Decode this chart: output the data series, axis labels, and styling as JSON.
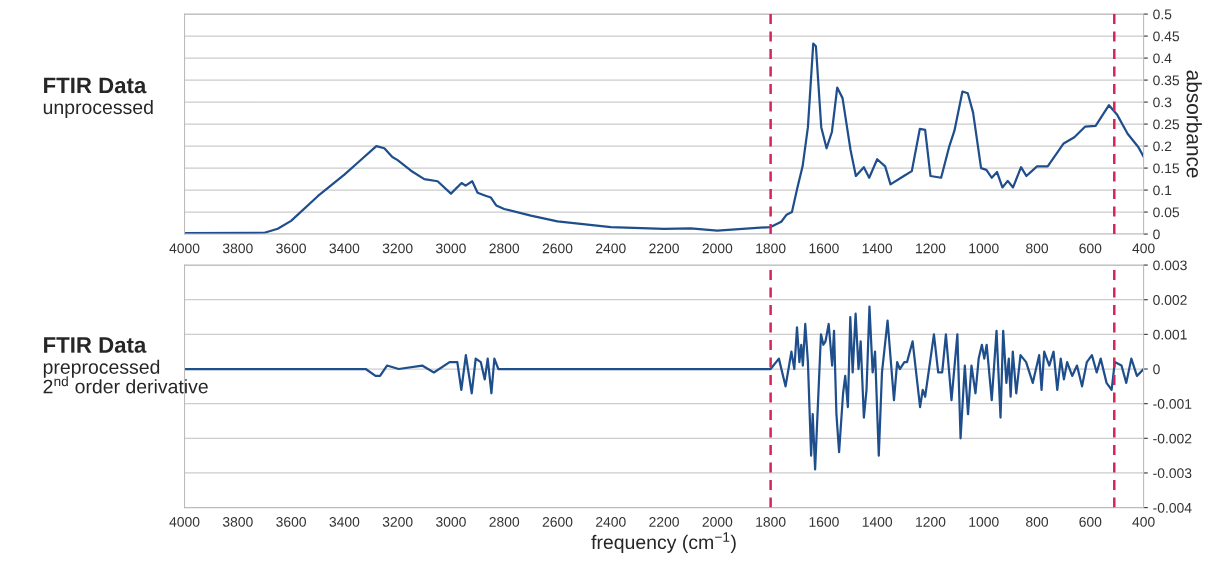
{
  "chart_data": [
    {
      "type": "line",
      "title": "FTIR Data",
      "subtitle": "unprocessed",
      "ylabel": "absorbance",
      "x": [
        4000,
        3700,
        3650,
        3600,
        3500,
        3400,
        3350,
        3280,
        3250,
        3220,
        3200,
        3150,
        3100,
        3050,
        3000,
        2960,
        2945,
        2920,
        2900,
        2870,
        2850,
        2830,
        2800,
        2700,
        2600,
        2400,
        2200,
        2100,
        2000,
        1800,
        1760,
        1740,
        1720,
        1700,
        1680,
        1660,
        1640,
        1630,
        1610,
        1590,
        1570,
        1550,
        1530,
        1500,
        1480,
        1450,
        1430,
        1400,
        1370,
        1350,
        1300,
        1270,
        1240,
        1220,
        1200,
        1160,
        1130,
        1110,
        1080,
        1060,
        1040,
        1010,
        990,
        970,
        950,
        930,
        910,
        890,
        860,
        840,
        800,
        760,
        700,
        660,
        620,
        580,
        530,
        500,
        460,
        420,
        400
      ],
      "series": [
        {
          "color": "#1f4e8c",
          "values": [
            0.002,
            0.003,
            0.012,
            0.03,
            0.086,
            0.135,
            0.162,
            0.2,
            0.195,
            0.175,
            0.168,
            0.144,
            0.125,
            0.12,
            0.092,
            0.116,
            0.11,
            0.12,
            0.094,
            0.087,
            0.083,
            0.065,
            0.057,
            0.042,
            0.029,
            0.016,
            0.012,
            0.013,
            0.008,
            0.016,
            0.028,
            0.044,
            0.05,
            0.104,
            0.154,
            0.243,
            0.433,
            0.427,
            0.243,
            0.195,
            0.232,
            0.333,
            0.309,
            0.191,
            0.132,
            0.152,
            0.128,
            0.17,
            0.154,
            0.113,
            0.132,
            0.143,
            0.239,
            0.237,
            0.132,
            0.128,
            0.198,
            0.235,
            0.324,
            0.32,
            0.276,
            0.15,
            0.146,
            0.128,
            0.141,
            0.106,
            0.121,
            0.106,
            0.152,
            0.132,
            0.154,
            0.154,
            0.206,
            0.22,
            0.244,
            0.246,
            0.293,
            0.272,
            0.228,
            0.198,
            0.176
          ]
        }
      ],
      "xlim": [
        4000,
        400
      ],
      "xticks": [
        4000,
        3800,
        3600,
        3400,
        3200,
        3000,
        2800,
        2600,
        2400,
        2200,
        2000,
        1800,
        1600,
        1400,
        1200,
        1000,
        800,
        600,
        400
      ],
      "ylim": [
        0,
        0.5
      ],
      "yticks": [
        0,
        0.05,
        0.1,
        0.15,
        0.2,
        0.25,
        0.3,
        0.35,
        0.4,
        0.45,
        0.5
      ],
      "grid": "y",
      "line_style": "solid",
      "marker": "none",
      "ref_lines": [
        {
          "axis": "x",
          "value": 1800,
          "color": "#d6245b",
          "line_style": "dashed"
        },
        {
          "axis": "x",
          "value": 510,
          "color": "#d6245b",
          "line_style": "dashed"
        }
      ]
    },
    {
      "type": "line",
      "title": "FTIR Data",
      "subtitle": "preprocessed\n2$^{nd}$ order derivative",
      "xlabel": "frequency (cm$^{−1}$)",
      "x": [
        4000,
        3700,
        3400,
        3320,
        3283,
        3266,
        3240,
        3196,
        3108,
        3064,
        3005,
        2976,
        2961,
        2944,
        2922,
        2907,
        2888,
        2873,
        2862,
        2848,
        2837,
        2822,
        2550,
        1963,
        1800,
        1769,
        1744,
        1722,
        1711,
        1701,
        1692,
        1685,
        1679,
        1670,
        1660,
        1648,
        1642,
        1633,
        1611,
        1602,
        1594,
        1582,
        1569,
        1562,
        1553,
        1543,
        1528,
        1520,
        1510,
        1501,
        1492,
        1481,
        1470,
        1462,
        1450,
        1440,
        1429,
        1417,
        1408,
        1394,
        1382,
        1361,
        1337,
        1325,
        1315,
        1298,
        1288,
        1267,
        1239,
        1229,
        1220,
        1187,
        1171,
        1156,
        1142,
        1121,
        1099,
        1087,
        1071,
        1059,
        1046,
        1031,
        1019,
        1007,
        998,
        989,
        970,
        952,
        937,
        927,
        915,
        906,
        899,
        891,
        878,
        862,
        841,
        816,
        792,
        783,
        773,
        754,
        738,
        724,
        711,
        699,
        687,
        668,
        650,
        631,
        613,
        594,
        576,
        561,
        539,
        520,
        508,
        483,
        465,
        446,
        425,
        400
      ],
      "series": [
        {
          "color": "#1f4e8c",
          "values": [
            0,
            0,
            0,
            0,
            -0.0002,
            -0.0002,
            0.0001,
            0,
            0.0001,
            -0.0001,
            0.0002,
            0.0002,
            -0.0006,
            0.0004,
            -0.0007,
            0.0003,
            0.0002,
            -0.0003,
            0.0003,
            -0.0007,
            0.0003,
            0,
            0,
            0,
            0,
            0.0003,
            -0.0005,
            0.0005,
            0,
            0.0012,
            0.0002,
            0.0007,
            0.0001,
            0.0013,
            0.0002,
            -0.0025,
            -0.0013,
            -0.0029,
            0.001,
            0.0007,
            0.0008,
            0.0013,
            0.0001,
            0.0011,
            -0.0013,
            -0.0024,
            -0.0007,
            -0.0002,
            -0.0011,
            0.0015,
            -0.0001,
            0.0016,
            0,
            0.0008,
            -0.0014,
            -0.0006,
            0.0018,
            -0.0001,
            0.0005,
            -0.0025,
            -0.0001,
            0.0014,
            -0.0009,
            0.0002,
            0,
            0.0002,
            0.0002,
            0.0008,
            -0.0011,
            -0.0006,
            -0.0008,
            0.001,
            -0.0001,
            -0.0001,
            0.001,
            -0.0009,
            0.001,
            -0.002,
            0.0001,
            -0.0013,
            0.0001,
            -0.0007,
            0.0003,
            0.0007,
            0.0003,
            0.0007,
            -0.0009,
            0.0011,
            -0.0014,
            0.0011,
            -0.0004,
            0.0003,
            -0.0008,
            0.0005,
            -0.0007,
            0.0004,
            0.0002,
            -0.0004,
            0.0004,
            -0.0006,
            0.0005,
            0.0001,
            0.0005,
            -0.0006,
            0.0003,
            -0.0003,
            0.0002,
            -0.0002,
            0.0001,
            -0.0005,
            0.0002,
            0.0004,
            -0.0001,
            0.0003,
            -0.0004,
            -0.0006,
            0.0002,
            0.0001,
            -0.0004,
            0.0003,
            -0.0002,
            0
          ]
        }
      ],
      "xlim": [
        4000,
        400
      ],
      "xticks": [
        4000,
        3800,
        3600,
        3400,
        3200,
        3000,
        2800,
        2600,
        2400,
        2200,
        2000,
        1800,
        1600,
        1400,
        1200,
        1000,
        800,
        600,
        400
      ],
      "ylim": [
        -0.004,
        0.003
      ],
      "yticks": [
        -0.004,
        -0.003,
        -0.002,
        -0.001,
        0,
        0.001,
        0.002,
        0.003
      ],
      "grid": "y",
      "line_style": "solid",
      "marker": "none",
      "ref_lines": [
        {
          "axis": "x",
          "value": 1800,
          "color": "#d6245b",
          "line_style": "dashed"
        },
        {
          "axis": "x",
          "value": 510,
          "color": "#d6245b",
          "line_style": "dashed"
        }
      ]
    }
  ]
}
